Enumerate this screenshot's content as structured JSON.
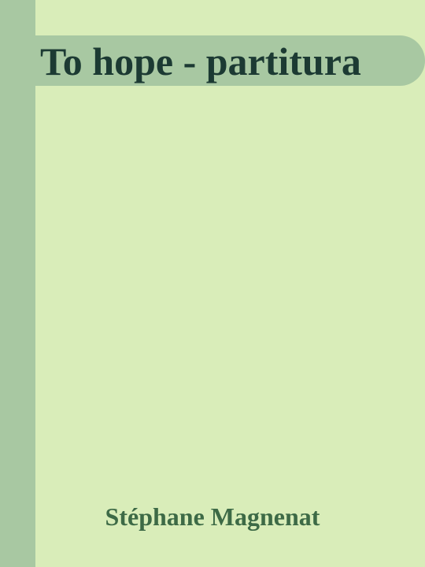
{
  "cover": {
    "title": "To hope - partitura",
    "author": "Stéphane Magnenat",
    "colors": {
      "background": "#d9edb9",
      "band": "#a8c8a2",
      "title_text": "#1c3a33",
      "author_text": "#3d6a46"
    }
  }
}
